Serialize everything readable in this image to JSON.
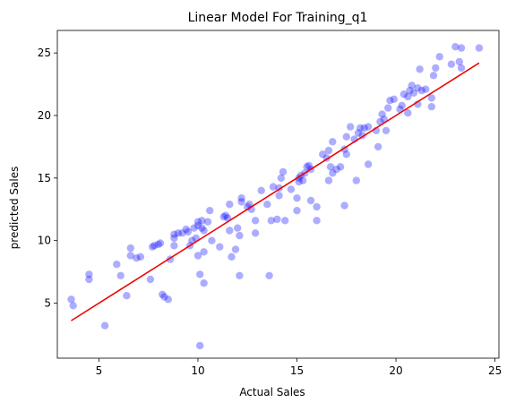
{
  "chart_data": {
    "type": "scatter",
    "title": "Linear Model For Training_q1",
    "xlabel": "Actual Sales",
    "ylabel": "predicted Sales",
    "xlim": [
      2.9,
      25.2
    ],
    "ylim": [
      0.6,
      26.8
    ],
    "xticks": [
      5,
      10,
      15,
      20,
      25
    ],
    "yticks": [
      5,
      10,
      15,
      20,
      25
    ],
    "grid": false,
    "points": [
      [
        3.6,
        5.3
      ],
      [
        3.7,
        4.8
      ],
      [
        4.5,
        6.9
      ],
      [
        4.5,
        7.3
      ],
      [
        5.3,
        3.2
      ],
      [
        5.9,
        8.1
      ],
      [
        6.1,
        7.2
      ],
      [
        6.4,
        5.6
      ],
      [
        6.6,
        9.4
      ],
      [
        6.6,
        8.8
      ],
      [
        6.9,
        8.6
      ],
      [
        7.1,
        8.7
      ],
      [
        7.6,
        6.9
      ],
      [
        7.7,
        9.5
      ],
      [
        7.8,
        9.6
      ],
      [
        8.0,
        9.7
      ],
      [
        8.1,
        9.8
      ],
      [
        8.2,
        5.7
      ],
      [
        8.3,
        5.5
      ],
      [
        8.5,
        5.3
      ],
      [
        8.6,
        8.5
      ],
      [
        8.8,
        9.6
      ],
      [
        8.8,
        10.2
      ],
      [
        8.8,
        10.5
      ],
      [
        9.0,
        10.6
      ],
      [
        9.2,
        10.6
      ],
      [
        9.4,
        10.9
      ],
      [
        9.5,
        10.7
      ],
      [
        9.6,
        9.6
      ],
      [
        9.7,
        10.0
      ],
      [
        9.8,
        11.0
      ],
      [
        9.9,
        10.2
      ],
      [
        10.0,
        11.2
      ],
      [
        10.0,
        11.5
      ],
      [
        10.0,
        8.8
      ],
      [
        10.1,
        7.3
      ],
      [
        10.1,
        1.6
      ],
      [
        10.2,
        11.6
      ],
      [
        10.2,
        11.0
      ],
      [
        10.3,
        10.8
      ],
      [
        10.3,
        9.1
      ],
      [
        10.3,
        6.6
      ],
      [
        10.5,
        11.5
      ],
      [
        10.6,
        12.4
      ],
      [
        10.7,
        10.0
      ],
      [
        11.1,
        9.5
      ],
      [
        11.3,
        11.9
      ],
      [
        11.4,
        12.0
      ],
      [
        11.5,
        11.8
      ],
      [
        11.6,
        12.9
      ],
      [
        11.6,
        10.8
      ],
      [
        11.7,
        8.7
      ],
      [
        11.9,
        9.3
      ],
      [
        12.0,
        11.0
      ],
      [
        12.1,
        10.4
      ],
      [
        12.1,
        7.2
      ],
      [
        12.2,
        13.1
      ],
      [
        12.2,
        13.4
      ],
      [
        12.5,
        12.7
      ],
      [
        12.6,
        12.9
      ],
      [
        12.7,
        12.5
      ],
      [
        12.9,
        10.6
      ],
      [
        12.9,
        11.6
      ],
      [
        13.2,
        14.0
      ],
      [
        13.5,
        12.9
      ],
      [
        13.6,
        7.2
      ],
      [
        13.7,
        11.6
      ],
      [
        13.8,
        14.3
      ],
      [
        14.0,
        11.7
      ],
      [
        14.1,
        13.6
      ],
      [
        14.1,
        14.2
      ],
      [
        14.2,
        15.0
      ],
      [
        14.3,
        15.5
      ],
      [
        14.4,
        11.6
      ],
      [
        14.7,
        14.1
      ],
      [
        15.0,
        12.4
      ],
      [
        15.0,
        13.4
      ],
      [
        15.1,
        15.0
      ],
      [
        15.1,
        14.7
      ],
      [
        15.2,
        15.2
      ],
      [
        15.3,
        14.8
      ],
      [
        15.4,
        15.4
      ],
      [
        15.5,
        15.9
      ],
      [
        15.6,
        16.0
      ],
      [
        15.7,
        15.7
      ],
      [
        15.7,
        13.2
      ],
      [
        16.0,
        12.7
      ],
      [
        16.0,
        11.6
      ],
      [
        16.3,
        16.9
      ],
      [
        16.5,
        16.6
      ],
      [
        16.6,
        17.2
      ],
      [
        16.6,
        14.8
      ],
      [
        16.7,
        15.9
      ],
      [
        16.8,
        17.9
      ],
      [
        16.8,
        15.4
      ],
      [
        17.0,
        15.7
      ],
      [
        17.2,
        15.9
      ],
      [
        17.4,
        17.3
      ],
      [
        17.5,
        16.9
      ],
      [
        17.5,
        18.3
      ],
      [
        17.4,
        12.8
      ],
      [
        17.7,
        19.1
      ],
      [
        17.9,
        18.1
      ],
      [
        18.0,
        14.8
      ],
      [
        18.1,
        18.6
      ],
      [
        18.2,
        19.0
      ],
      [
        18.3,
        18.4
      ],
      [
        18.4,
        19.0
      ],
      [
        18.6,
        19.1
      ],
      [
        18.6,
        16.1
      ],
      [
        19.0,
        18.8
      ],
      [
        19.1,
        17.5
      ],
      [
        19.2,
        19.5
      ],
      [
        19.3,
        20.1
      ],
      [
        19.4,
        19.7
      ],
      [
        19.5,
        18.8
      ],
      [
        19.6,
        20.6
      ],
      [
        19.7,
        21.2
      ],
      [
        19.9,
        21.3
      ],
      [
        20.2,
        20.5
      ],
      [
        20.3,
        20.8
      ],
      [
        20.4,
        21.7
      ],
      [
        20.6,
        20.2
      ],
      [
        20.6,
        21.5
      ],
      [
        20.7,
        22.0
      ],
      [
        20.8,
        22.4
      ],
      [
        20.9,
        21.8
      ],
      [
        21.1,
        22.2
      ],
      [
        21.1,
        20.9
      ],
      [
        21.2,
        23.7
      ],
      [
        21.3,
        22.0
      ],
      [
        21.5,
        22.1
      ],
      [
        21.8,
        21.4
      ],
      [
        21.8,
        20.7
      ],
      [
        21.9,
        23.2
      ],
      [
        22.0,
        23.8
      ],
      [
        22.2,
        24.7
      ],
      [
        22.8,
        24.1
      ],
      [
        23.0,
        25.5
      ],
      [
        23.2,
        24.3
      ],
      [
        23.3,
        23.8
      ],
      [
        23.3,
        25.4
      ],
      [
        24.2,
        25.4
      ]
    ],
    "fit_line": {
      "x": [
        3.6,
        24.2
      ],
      "y": [
        3.6,
        24.2
      ]
    },
    "colors": {
      "points": "#0000ff",
      "line": "#ee0000"
    }
  }
}
